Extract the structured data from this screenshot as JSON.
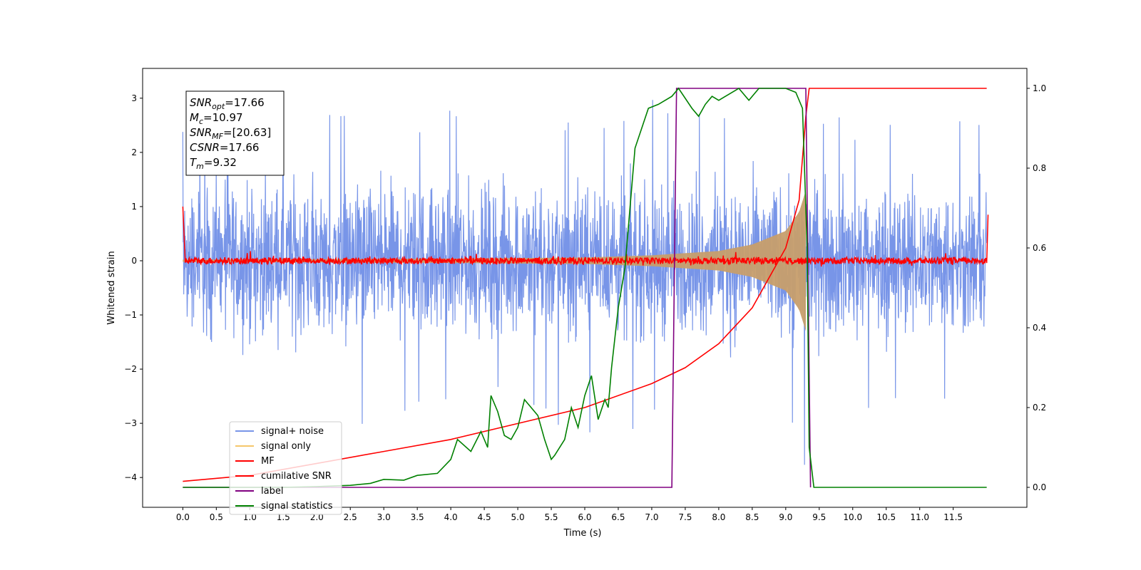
{
  "chart_data": {
    "type": "line",
    "xlabel": "Time (s)",
    "ylabel": "Whitened strain",
    "xlim": [
      -0.6,
      12.6
    ],
    "ylim": [
      -4.55,
      3.55
    ],
    "y2lim": [
      -0.05,
      1.05
    ],
    "x_ticks": [
      "0.0",
      "0.5",
      "1.0",
      "1.5",
      "2.0",
      "2.5",
      "3.0",
      "3.5",
      "4.0",
      "4.5",
      "5.0",
      "5.5",
      "6.0",
      "6.5",
      "7.0",
      "7.5",
      "8.0",
      "8.5",
      "9.0",
      "9.5",
      "10.0",
      "10.5",
      "11.0",
      "11.5"
    ],
    "y_ticks": [
      "3",
      "2",
      "1",
      "0",
      "−1",
      "−2",
      "−3",
      "−4"
    ],
    "y2_ticks": [
      "1.0",
      "0.8",
      "0.6",
      "0.4",
      "0.2",
      "0.0"
    ],
    "grid": false,
    "legend_position": "lower-left",
    "annotation": {
      "snr_opt": {
        "name": "SNR",
        "sub": "opt",
        "value": "=17.66"
      },
      "mc": {
        "name": "M",
        "sub": "c",
        "value": "=10.97"
      },
      "snr_mf": {
        "name": "SNR",
        "sub": "MF",
        "value": "=[20.63]"
      },
      "csnr": {
        "name": "CSNR",
        "sub": "",
        "value": "=17.66"
      },
      "tm": {
        "name": "T",
        "sub": "m",
        "value": "=9.32"
      }
    },
    "series": [
      {
        "name": "signal+ noise",
        "color": "#7895e8",
        "axis": "left",
        "envelope_x": [
          0.0,
          1.0,
          2.0,
          3.0,
          4.0,
          5.0,
          6.0,
          7.0,
          8.0,
          9.0,
          9.3,
          9.5,
          10.0,
          11.0,
          12.0
        ],
        "envelope_max": [
          2.5,
          2.7,
          2.9,
          2.6,
          2.8,
          2.6,
          2.8,
          3.0,
          2.9,
          2.8,
          3.0,
          2.8,
          2.6,
          2.8,
          2.7
        ],
        "envelope_min": [
          -2.4,
          -2.8,
          -3.0,
          -3.2,
          -2.7,
          -2.6,
          -3.6,
          -3.0,
          -2.6,
          -2.5,
          -4.1,
          -2.7,
          -3.0,
          -2.7,
          -2.6
        ]
      },
      {
        "name": "signal only",
        "color": "#f5c76b",
        "axis": "left",
        "x": [
          0.0,
          2.0,
          4.0,
          6.0,
          7.0,
          8.0,
          8.5,
          9.0,
          9.2,
          9.3
        ],
        "amplitude": [
          0.02,
          0.03,
          0.04,
          0.06,
          0.1,
          0.18,
          0.3,
          0.55,
          0.9,
          1.3
        ]
      },
      {
        "name": "MF",
        "color": "#ff0000",
        "axis": "left",
        "x": [
          0.0,
          0.03,
          12.0,
          12.02
        ],
        "y": [
          1.0,
          0.0,
          0.0,
          0.85
        ],
        "noise_amplitude": 0.06
      },
      {
        "name": "cumilative SNR",
        "color": "#ff0000",
        "axis": "right",
        "x": [
          0.0,
          1.0,
          2.0,
          3.0,
          4.0,
          5.0,
          6.0,
          7.0,
          7.5,
          8.0,
          8.5,
          9.0,
          9.2,
          9.3,
          9.35,
          12.0
        ],
        "y": [
          0.015,
          0.03,
          0.06,
          0.09,
          0.12,
          0.16,
          0.2,
          0.26,
          0.3,
          0.36,
          0.45,
          0.6,
          0.72,
          0.93,
          1.0,
          1.0
        ]
      },
      {
        "name": "label",
        "color": "#800080",
        "axis": "right",
        "x": [
          0.0,
          7.3,
          7.37,
          9.3,
          9.37
        ],
        "y": [
          0.0,
          0.0,
          1.0,
          1.0,
          0.0
        ]
      },
      {
        "name": "signal statistics",
        "color": "#008000",
        "axis": "right",
        "x": [
          0.0,
          1.5,
          2.0,
          2.5,
          2.8,
          3.0,
          3.3,
          3.5,
          3.8,
          4.0,
          4.1,
          4.3,
          4.45,
          4.55,
          4.6,
          4.7,
          4.8,
          4.9,
          5.0,
          5.1,
          5.2,
          5.3,
          5.4,
          5.5,
          5.55,
          5.7,
          5.8,
          5.9,
          6.0,
          6.1,
          6.2,
          6.3,
          6.35,
          6.4,
          6.5,
          6.6,
          6.7,
          6.75,
          6.85,
          6.95,
          7.1,
          7.3,
          7.4,
          7.6,
          7.7,
          7.8,
          7.9,
          8.0,
          8.3,
          8.45,
          8.6,
          8.7,
          9.0,
          9.15,
          9.25,
          9.32,
          9.35,
          9.42,
          12.0
        ],
        "y": [
          0.0,
          0.0,
          0.002,
          0.005,
          0.01,
          0.02,
          0.018,
          0.03,
          0.035,
          0.07,
          0.12,
          0.09,
          0.14,
          0.1,
          0.23,
          0.19,
          0.13,
          0.12,
          0.15,
          0.22,
          0.2,
          0.18,
          0.12,
          0.07,
          0.08,
          0.12,
          0.2,
          0.15,
          0.23,
          0.28,
          0.17,
          0.22,
          0.2,
          0.3,
          0.45,
          0.55,
          0.75,
          0.85,
          0.9,
          0.95,
          0.96,
          0.98,
          1.0,
          0.95,
          0.93,
          0.96,
          0.98,
          0.97,
          1.0,
          0.97,
          1.0,
          1.0,
          1.0,
          0.99,
          0.95,
          0.6,
          0.1,
          0.0,
          0.0
        ]
      }
    ]
  }
}
